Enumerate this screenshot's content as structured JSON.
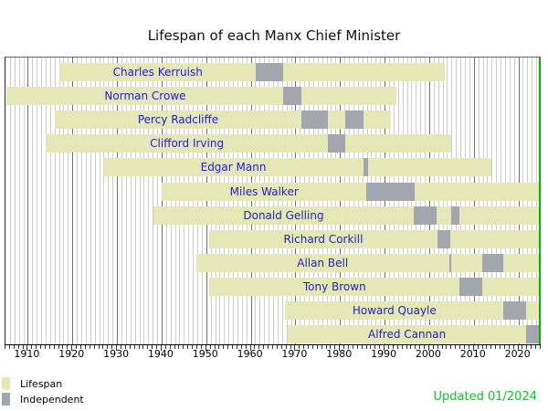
{
  "chart_data": {
    "type": "gantt-timeline",
    "title": "Lifespan of each Manx Chief Minister",
    "x_domain": [
      1905,
      2025
    ],
    "x_tick_labels": [
      1910,
      1920,
      1930,
      1940,
      1950,
      1960,
      1970,
      1980,
      1990,
      2000,
      2010,
      2020
    ],
    "grid": "vertical, 1-year minor lines, darker decade lines",
    "present_line_year": 2025,
    "present_end": 2024.7,
    "updated_note": "Updated 01/2024",
    "legend": [
      {
        "label": "Lifespan",
        "color": "#e5e8b6"
      },
      {
        "label": "Independent",
        "color": "#a3a7ad"
      }
    ],
    "colors": {
      "lifespan_bar": "#e5e8b6",
      "independent_bar": "#a3a7ad",
      "row_label_text": "#2222cc",
      "present_line": "#00b400",
      "updated_text": "#00cc22"
    },
    "rows": [
      {
        "name": "Charles Kerruish",
        "birth": 1917.1,
        "death": 2003.6,
        "terms": [
          [
            1961.2,
            1967.35
          ]
        ]
      },
      {
        "name": "Norman Crowe",
        "birth": 1905.3,
        "death": 1992.6,
        "terms": [
          [
            1967.35,
            1971.4
          ]
        ]
      },
      {
        "name": "Percy Radcliffe",
        "birth": 1916.0,
        "death": 1991.5,
        "terms": [
          [
            1971.4,
            1977.35
          ],
          [
            1981.2,
            1985.3
          ]
        ]
      },
      {
        "name": "Clifford Irving",
        "birth": 1914.0,
        "death": 2004.9,
        "terms": [
          [
            1977.35,
            1981.2
          ]
        ]
      },
      {
        "name": "Edgar Mann",
        "birth": 1926.9,
        "death": 2013.9,
        "terms": [
          [
            1985.3,
            1986.3
          ]
        ]
      },
      {
        "name": "Miles Walker",
        "birth": 1940.1,
        "death": null,
        "terms": [
          [
            1985.9,
            1996.75
          ]
        ]
      },
      {
        "name": "Donald Gelling",
        "birth": 1938.1,
        "death": null,
        "terms": [
          [
            1996.6,
            2001.7
          ],
          [
            2004.95,
            2006.85
          ]
        ]
      },
      {
        "name": "Richard Corkill",
        "birth": 1950.7,
        "death": null,
        "terms": [
          [
            2001.8,
            2004.75
          ]
        ]
      },
      {
        "name": "Allan Bell",
        "birth": 1947.7,
        "death": null,
        "terms": [
          [
            2004.5,
            2004.95
          ],
          [
            2011.9,
            2016.7
          ]
        ]
      },
      {
        "name": "Tony Brown",
        "birth": 1950.7,
        "death": null,
        "terms": [
          [
            2006.85,
            2011.9
          ]
        ]
      },
      {
        "name": "Howard Quayle",
        "birth": 1967.7,
        "death": null,
        "terms": [
          [
            2016.7,
            2021.75
          ]
        ]
      },
      {
        "name": "Alfred Cannan",
        "birth": 1968.3,
        "death": null,
        "terms": [
          [
            2021.75,
            2024.7
          ]
        ]
      }
    ]
  }
}
